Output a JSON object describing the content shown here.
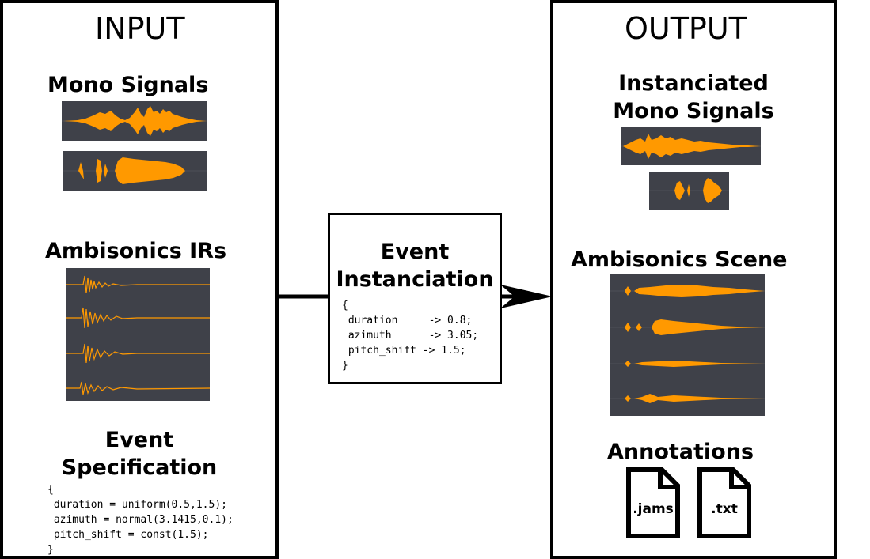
{
  "input": {
    "title": "INPUT",
    "mono_signals_label": "Mono Signals",
    "ambisonics_irs_label": "Ambisonics IRs",
    "event_spec_label_line1": "Event",
    "event_spec_label_line2": "Specification",
    "event_spec_code": [
      "{",
      " duration = uniform(0.5,1.5);",
      " azimuth = normal(3.1415,0.1);",
      " pitch_shift = const(1.5);",
      "}"
    ]
  },
  "process": {
    "title_line1": "Event",
    "title_line2": "Instanciation",
    "code": [
      "{",
      " duration     -> 0.8;",
      " azimuth      -> 3.05;",
      " pitch_shift -> 1.5;",
      "}"
    ]
  },
  "output": {
    "title": "OUTPUT",
    "instanciated_label_line1": "Instanciated",
    "instanciated_label_line2": "Mono Signals",
    "ambisonics_scene_label": "Ambisonics Scene",
    "annotations_label": "Annotations",
    "files": [
      ".jams",
      ".txt"
    ]
  },
  "colors": {
    "waveform": "#ff9900",
    "waveform_bg": "#3f4149",
    "grid_line": "#4d4f57",
    "stroke": "#000000"
  }
}
